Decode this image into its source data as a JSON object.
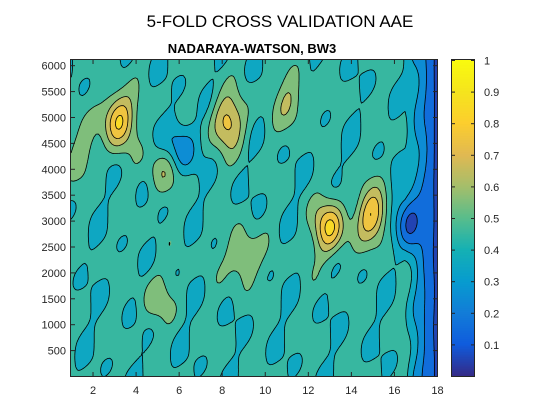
{
  "figure": {
    "suptitle": "5-FOLD CROSS VALIDATION AAE"
  },
  "chart_data": {
    "type": "heatmap",
    "style": "filled contour",
    "title": "NADARAYA-WATSON, BW3",
    "xlabel": "",
    "ylabel": "",
    "xlim": [
      1,
      18
    ],
    "ylim": [
      0,
      6100
    ],
    "clim": [
      0,
      1
    ],
    "colormap": "parula",
    "x_ticks": [
      2,
      4,
      6,
      8,
      10,
      12,
      14,
      16,
      18
    ],
    "x_tick_labels": [
      "2",
      "4",
      "6",
      "8",
      "10",
      "12",
      "14",
      "16",
      "18"
    ],
    "y_ticks": [
      500,
      1000,
      1500,
      2000,
      2500,
      3000,
      3500,
      4000,
      4500,
      5000,
      5500,
      6000
    ],
    "y_tick_labels": [
      "500",
      "1000",
      "1500",
      "2000",
      "2500",
      "3000",
      "3500",
      "4000",
      "4500",
      "5000",
      "5500",
      "6000"
    ],
    "colorbar": {
      "ticks": [
        0.1,
        0.2,
        0.3,
        0.4,
        0.5,
        0.6,
        0.7,
        0.8,
        0.9,
        1
      ],
      "tick_labels": [
        "0.1",
        "0.2",
        "0.3",
        "0.4",
        "0.5",
        "0.6",
        "0.7",
        "0.8",
        "0.9",
        "1"
      ]
    },
    "contour_levels": [
      0.1,
      0.2,
      0.3,
      0.4,
      0.5,
      0.6,
      0.7,
      0.8,
      0.9
    ],
    "grid": false,
    "features": [
      {
        "x": 3.2,
        "y": 4950,
        "value": 0.82
      },
      {
        "x": 8.3,
        "y": 4900,
        "value": 0.74
      },
      {
        "x": 13.0,
        "y": 2850,
        "value": 0.8
      },
      {
        "x": 15.0,
        "y": 3100,
        "value": 0.78
      },
      {
        "x": 9.0,
        "y": 2300,
        "value": 0.63
      },
      {
        "x": 11.2,
        "y": 5300,
        "value": 0.6
      },
      {
        "x": 5.3,
        "y": 4000,
        "value": 0.6
      },
      {
        "x": 5.0,
        "y": 1500,
        "value": 0.55
      },
      {
        "x": 1.5,
        "y": 4300,
        "value": 0.55
      },
      {
        "x": 6.0,
        "y": 4400,
        "value": 0.2
      },
      {
        "x": 16.8,
        "y": 3000,
        "value": 0.05
      }
    ]
  }
}
